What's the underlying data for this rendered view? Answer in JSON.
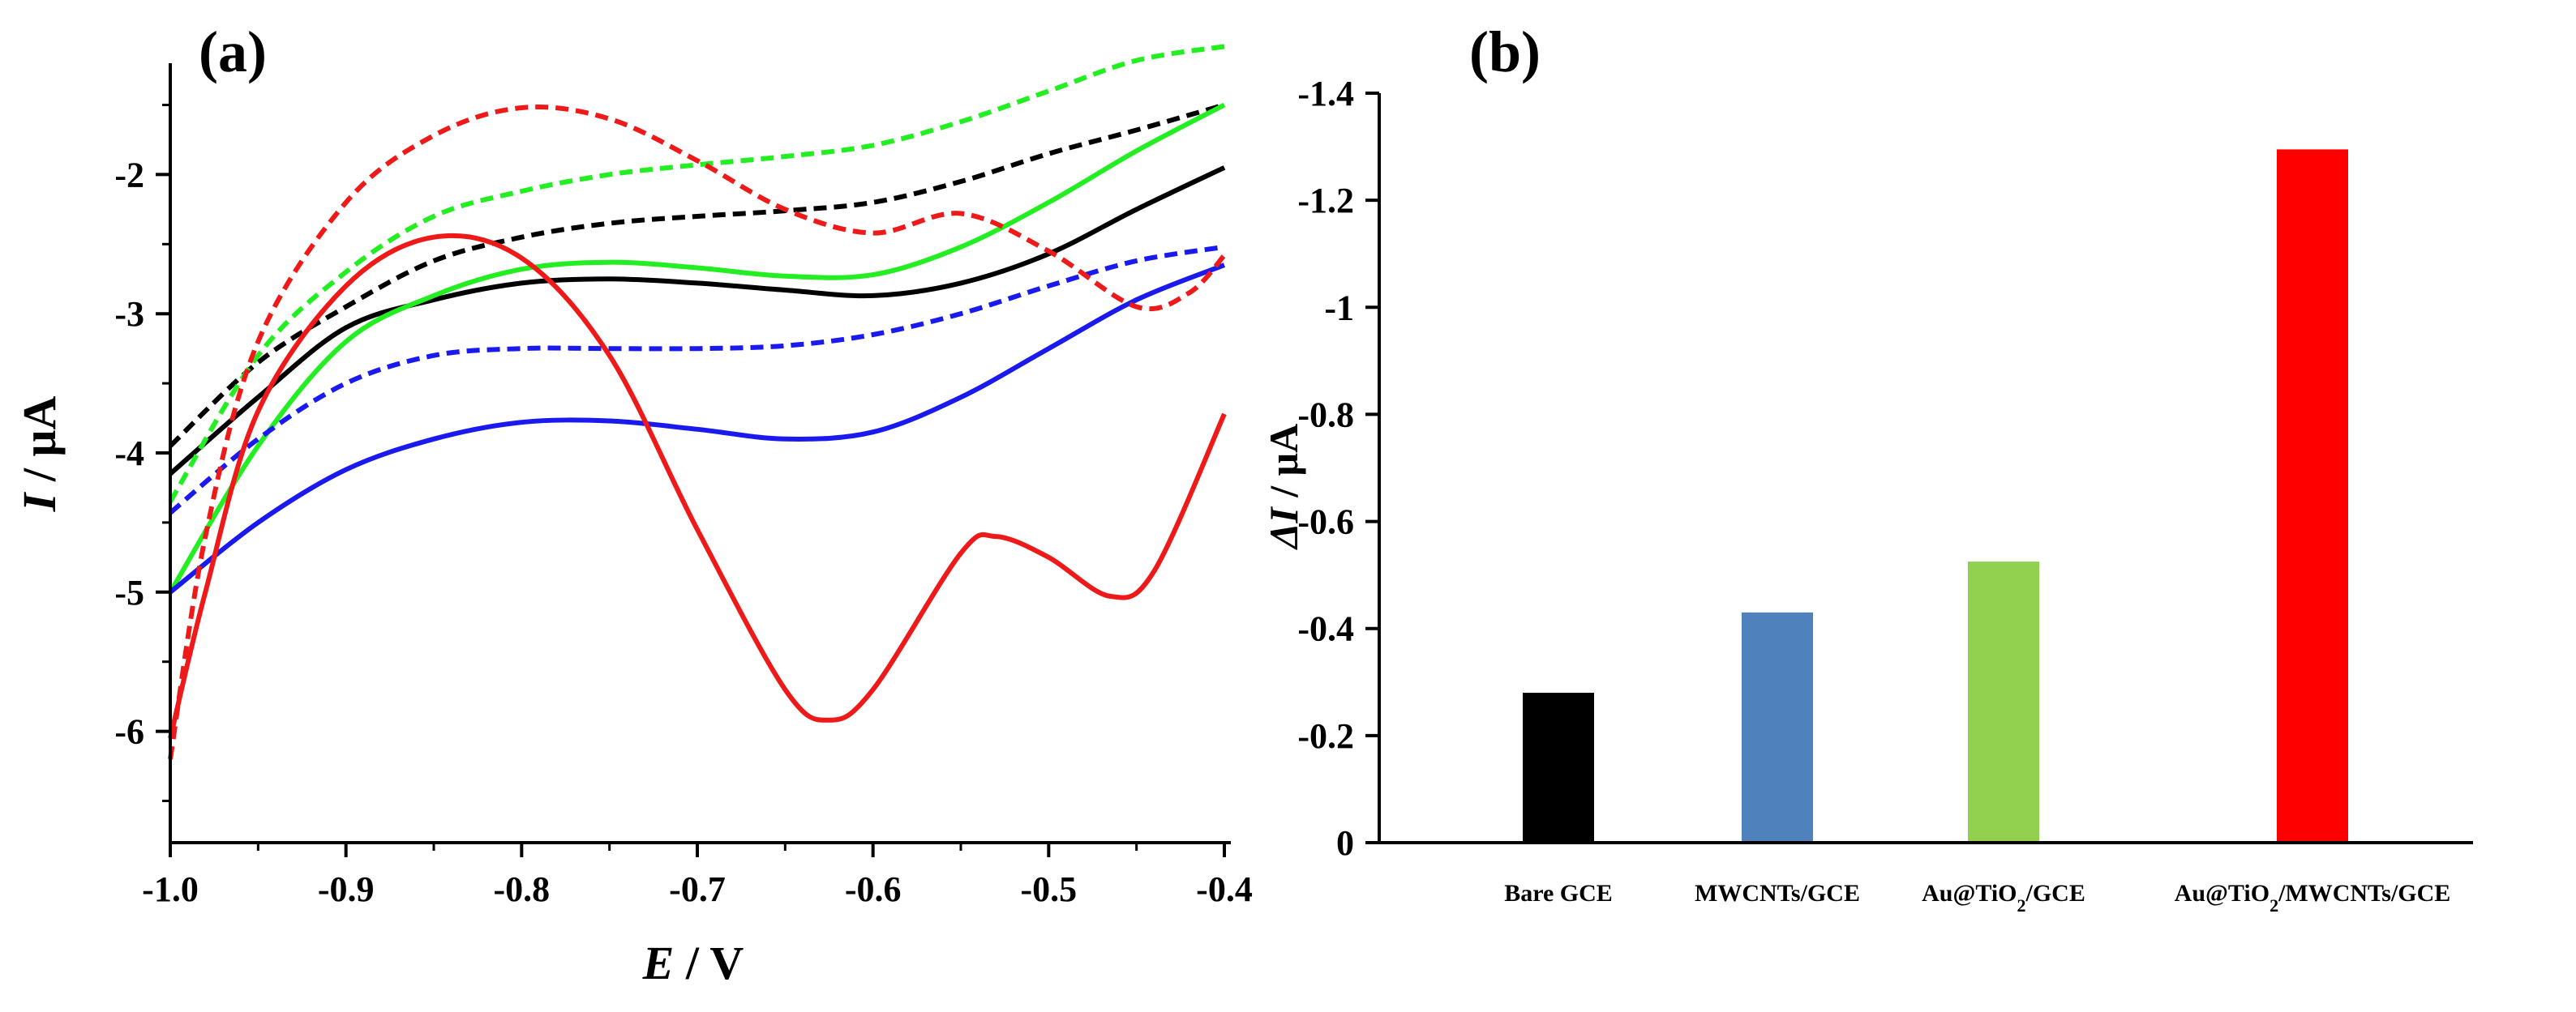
{
  "chart_data": [
    {
      "type": "line",
      "panel_label": "(a)",
      "xlabel_var": "E",
      "xlabel_unit": " / V",
      "ylabel_var": "I",
      "ylabel_unit": " / μA",
      "xlim": [
        -1.0,
        -0.4
      ],
      "ylim": [
        -6.8,
        -1.2
      ],
      "xticks": [
        -1.0,
        -0.9,
        -0.8,
        -0.7,
        -0.6,
        -0.5,
        -0.4
      ],
      "xtick_labels": [
        "-1.0",
        "-0.9",
        "-0.8",
        "-0.7",
        "-0.6",
        "-0.5",
        "-0.4"
      ],
      "yticks": [
        -6,
        -5,
        -4,
        -3,
        -2
      ],
      "ytick_labels": [
        "-6",
        "-5",
        "-4",
        "-3",
        "-2"
      ],
      "series": [
        {
          "name": "black-dashed",
          "color": "#000000",
          "style": "dashed",
          "points": [
            [
              -1.0,
              -3.95
            ],
            [
              -0.95,
              -3.35
            ],
            [
              -0.9,
              -2.95
            ],
            [
              -0.85,
              -2.62
            ],
            [
              -0.8,
              -2.45
            ],
            [
              -0.75,
              -2.35
            ],
            [
              -0.7,
              -2.3
            ],
            [
              -0.65,
              -2.26
            ],
            [
              -0.6,
              -2.2
            ],
            [
              -0.55,
              -2.05
            ],
            [
              -0.5,
              -1.85
            ],
            [
              -0.45,
              -1.68
            ],
            [
              -0.4,
              -1.5
            ]
          ]
        },
        {
          "name": "black-solid",
          "color": "#000000",
          "style": "solid",
          "points": [
            [
              -1.0,
              -4.15
            ],
            [
              -0.95,
              -3.6
            ],
            [
              -0.9,
              -3.1
            ],
            [
              -0.85,
              -2.9
            ],
            [
              -0.8,
              -2.78
            ],
            [
              -0.75,
              -2.75
            ],
            [
              -0.7,
              -2.78
            ],
            [
              -0.65,
              -2.83
            ],
            [
              -0.6,
              -2.87
            ],
            [
              -0.55,
              -2.78
            ],
            [
              -0.5,
              -2.57
            ],
            [
              -0.45,
              -2.25
            ],
            [
              -0.4,
              -1.95
            ]
          ]
        },
        {
          "name": "green-dashed",
          "color": "#22ee22",
          "style": "dashed",
          "points": [
            [
              -1.0,
              -4.35
            ],
            [
              -0.95,
              -3.3
            ],
            [
              -0.9,
              -2.7
            ],
            [
              -0.85,
              -2.3
            ],
            [
              -0.8,
              -2.12
            ],
            [
              -0.75,
              -2.0
            ],
            [
              -0.7,
              -1.93
            ],
            [
              -0.65,
              -1.87
            ],
            [
              -0.6,
              -1.79
            ],
            [
              -0.55,
              -1.62
            ],
            [
              -0.5,
              -1.4
            ],
            [
              -0.45,
              -1.18
            ],
            [
              -0.4,
              -1.08
            ]
          ]
        },
        {
          "name": "green-solid",
          "color": "#22ee22",
          "style": "solid",
          "points": [
            [
              -1.0,
              -5.0
            ],
            [
              -0.95,
              -3.95
            ],
            [
              -0.9,
              -3.2
            ],
            [
              -0.85,
              -2.87
            ],
            [
              -0.8,
              -2.68
            ],
            [
              -0.75,
              -2.63
            ],
            [
              -0.7,
              -2.67
            ],
            [
              -0.65,
              -2.73
            ],
            [
              -0.6,
              -2.72
            ],
            [
              -0.55,
              -2.52
            ],
            [
              -0.5,
              -2.2
            ],
            [
              -0.45,
              -1.83
            ],
            [
              -0.4,
              -1.5
            ]
          ]
        },
        {
          "name": "blue-dashed",
          "color": "#1a1aee",
          "style": "dashed",
          "points": [
            [
              -1.0,
              -4.43
            ],
            [
              -0.95,
              -3.9
            ],
            [
              -0.9,
              -3.5
            ],
            [
              -0.85,
              -3.3
            ],
            [
              -0.8,
              -3.25
            ],
            [
              -0.75,
              -3.25
            ],
            [
              -0.7,
              -3.25
            ],
            [
              -0.65,
              -3.23
            ],
            [
              -0.6,
              -3.15
            ],
            [
              -0.55,
              -3.0
            ],
            [
              -0.5,
              -2.8
            ],
            [
              -0.45,
              -2.62
            ],
            [
              -0.4,
              -2.52
            ]
          ]
        },
        {
          "name": "blue-solid",
          "color": "#1a1aee",
          "style": "solid",
          "points": [
            [
              -1.0,
              -5.0
            ],
            [
              -0.95,
              -4.5
            ],
            [
              -0.9,
              -4.12
            ],
            [
              -0.85,
              -3.9
            ],
            [
              -0.8,
              -3.78
            ],
            [
              -0.75,
              -3.77
            ],
            [
              -0.7,
              -3.83
            ],
            [
              -0.65,
              -3.9
            ],
            [
              -0.6,
              -3.85
            ],
            [
              -0.55,
              -3.6
            ],
            [
              -0.5,
              -3.25
            ],
            [
              -0.45,
              -2.9
            ],
            [
              -0.4,
              -2.65
            ]
          ]
        },
        {
          "name": "red-dashed",
          "color": "#ee1a1a",
          "style": "dashed",
          "points": [
            [
              -1.0,
              -6.2
            ],
            [
              -0.98,
              -4.6
            ],
            [
              -0.95,
              -3.2
            ],
            [
              -0.9,
              -2.2
            ],
            [
              -0.85,
              -1.72
            ],
            [
              -0.8,
              -1.52
            ],
            [
              -0.75,
              -1.6
            ],
            [
              -0.7,
              -1.9
            ],
            [
              -0.65,
              -2.25
            ],
            [
              -0.6,
              -2.42
            ],
            [
              -0.55,
              -2.28
            ],
            [
              -0.5,
              -2.55
            ],
            [
              -0.45,
              -2.95
            ],
            [
              -0.42,
              -2.85
            ],
            [
              -0.4,
              -2.58
            ]
          ]
        },
        {
          "name": "red-solid",
          "color": "#ee1a1a",
          "style": "solid",
          "points": [
            [
              -1.0,
              -6.05
            ],
            [
              -0.98,
              -5.0
            ],
            [
              -0.95,
              -3.7
            ],
            [
              -0.9,
              -2.8
            ],
            [
              -0.85,
              -2.45
            ],
            [
              -0.8,
              -2.6
            ],
            [
              -0.75,
              -3.3
            ],
            [
              -0.7,
              -4.55
            ],
            [
              -0.65,
              -5.7
            ],
            [
              -0.625,
              -5.92
            ],
            [
              -0.6,
              -5.7
            ],
            [
              -0.55,
              -4.72
            ],
            [
              -0.53,
              -4.6
            ],
            [
              -0.5,
              -4.75
            ],
            [
              -0.465,
              -5.03
            ],
            [
              -0.44,
              -4.85
            ],
            [
              -0.4,
              -3.72
            ]
          ]
        }
      ]
    },
    {
      "type": "bar",
      "panel_label": "(b)",
      "ylabel_var": "ΔI",
      "ylabel_unit": " / μA",
      "ylim": [
        0,
        -1.4
      ],
      "yticks": [
        0,
        -0.2,
        -0.4,
        -0.6,
        -0.8,
        -1,
        -1.2,
        -1.4
      ],
      "ytick_labels": [
        "0",
        "-0.2",
        "-0.4",
        "-0.6",
        "-0.8",
        "-1",
        "-1.2",
        "-1.4"
      ],
      "categories": [
        {
          "base": "Bare GCE",
          "sub": "",
          "tail": ""
        },
        {
          "base": "MWCNTs/GCE",
          "sub": "",
          "tail": ""
        },
        {
          "base": "Au@TiO",
          "sub": "2",
          "tail": "/GCE"
        },
        {
          "base": "Au@TiO",
          "sub": "2",
          "tail": "/MWCNTs/GCE"
        }
      ],
      "values": [
        -0.28,
        -0.43,
        -0.525,
        -1.295
      ],
      "colors": [
        "#000000",
        "#4f81bd",
        "#92d050",
        "#ff0000"
      ]
    }
  ]
}
